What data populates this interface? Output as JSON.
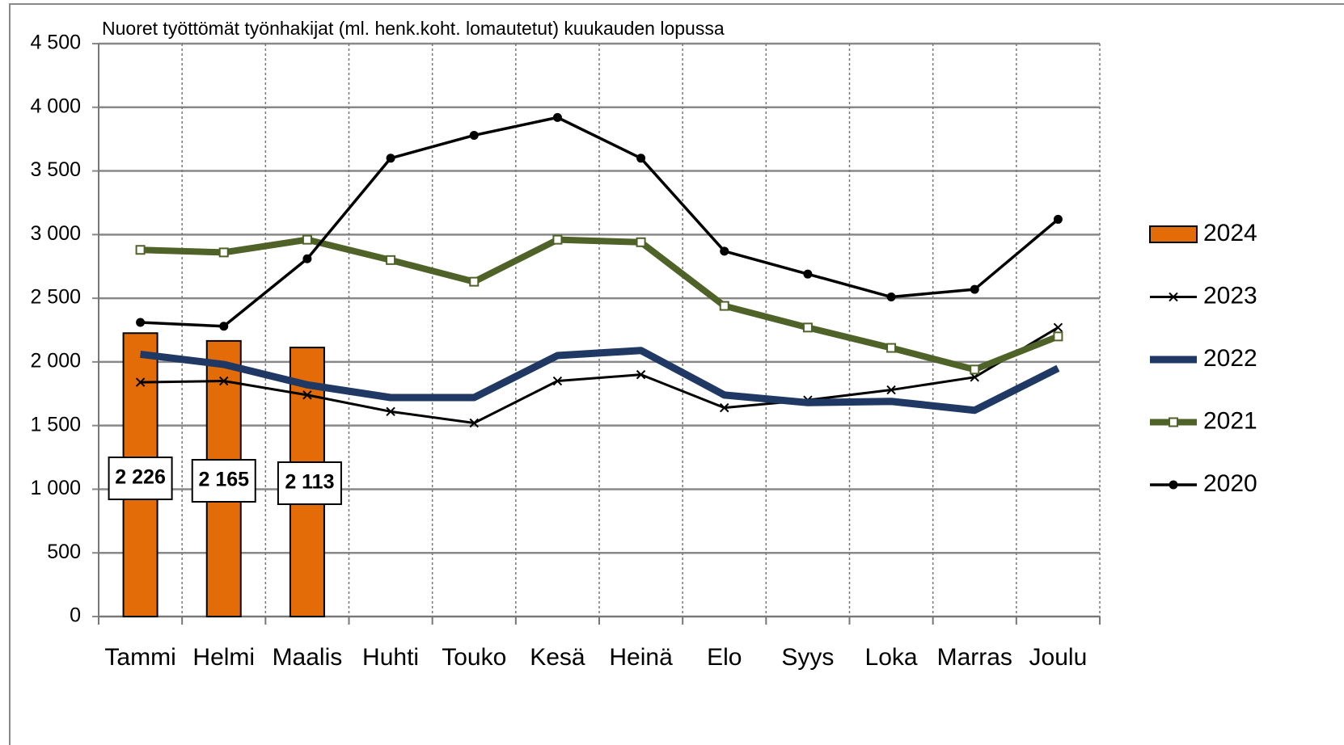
{
  "chart_data": {
    "type": "bar",
    "title": "Nuoret työttömät työnhakijat (ml. henk.koht. lomautetut) kuukauden lopussa",
    "categories": [
      "Tammi",
      "Helmi",
      "Maalis",
      "Huhti",
      "Touko",
      "Kesä",
      "Heinä",
      "Elo",
      "Syys",
      "Loka",
      "Marras",
      "Joulu"
    ],
    "series": [
      {
        "name": "2024",
        "type": "bar",
        "color": "#e36c09",
        "values": [
          2226,
          2165,
          2113,
          null,
          null,
          null,
          null,
          null,
          null,
          null,
          null,
          null
        ],
        "value_labels": [
          "2 226",
          "2 165",
          "2 113",
          null,
          null,
          null,
          null,
          null,
          null,
          null,
          null,
          null
        ]
      },
      {
        "name": "2023",
        "type": "line",
        "marker": "x",
        "color": "#000000",
        "values": [
          1840,
          1850,
          1740,
          1610,
          1520,
          1850,
          1900,
          1640,
          1700,
          1780,
          1880,
          2270
        ]
      },
      {
        "name": "2022",
        "type": "line",
        "marker": "none",
        "color": "#1f3864",
        "values": [
          2060,
          1980,
          1820,
          1720,
          1720,
          2050,
          2090,
          1740,
          1680,
          1690,
          1620,
          1950
        ]
      },
      {
        "name": "2021",
        "type": "line",
        "marker": "square",
        "color": "#4f6228",
        "values": [
          2880,
          2860,
          2960,
          2800,
          2630,
          2960,
          2940,
          2440,
          2270,
          2110,
          1940,
          2200
        ]
      },
      {
        "name": "2020",
        "type": "line",
        "marker": "dot",
        "color": "#000000",
        "values": [
          2310,
          2280,
          2810,
          3600,
          3780,
          3920,
          3600,
          2870,
          2690,
          2510,
          2570,
          3120
        ]
      }
    ],
    "ylim": [
      0,
      4500
    ],
    "yticks": [
      0,
      500,
      {
        "value": 1000,
        "label": "1 000"
      },
      {
        "value": 1500,
        "label": "1 500"
      },
      {
        "value": 2000,
        "label": "2 000"
      },
      {
        "value": 2500,
        "label": "2 500"
      },
      {
        "value": 3000,
        "label": "3 000"
      },
      {
        "value": 3500,
        "label": "3 500"
      },
      {
        "value": 4000,
        "label": "4 000"
      },
      {
        "value": 4500,
        "label": "4 500"
      }
    ],
    "grid": true,
    "legend": "right"
  }
}
